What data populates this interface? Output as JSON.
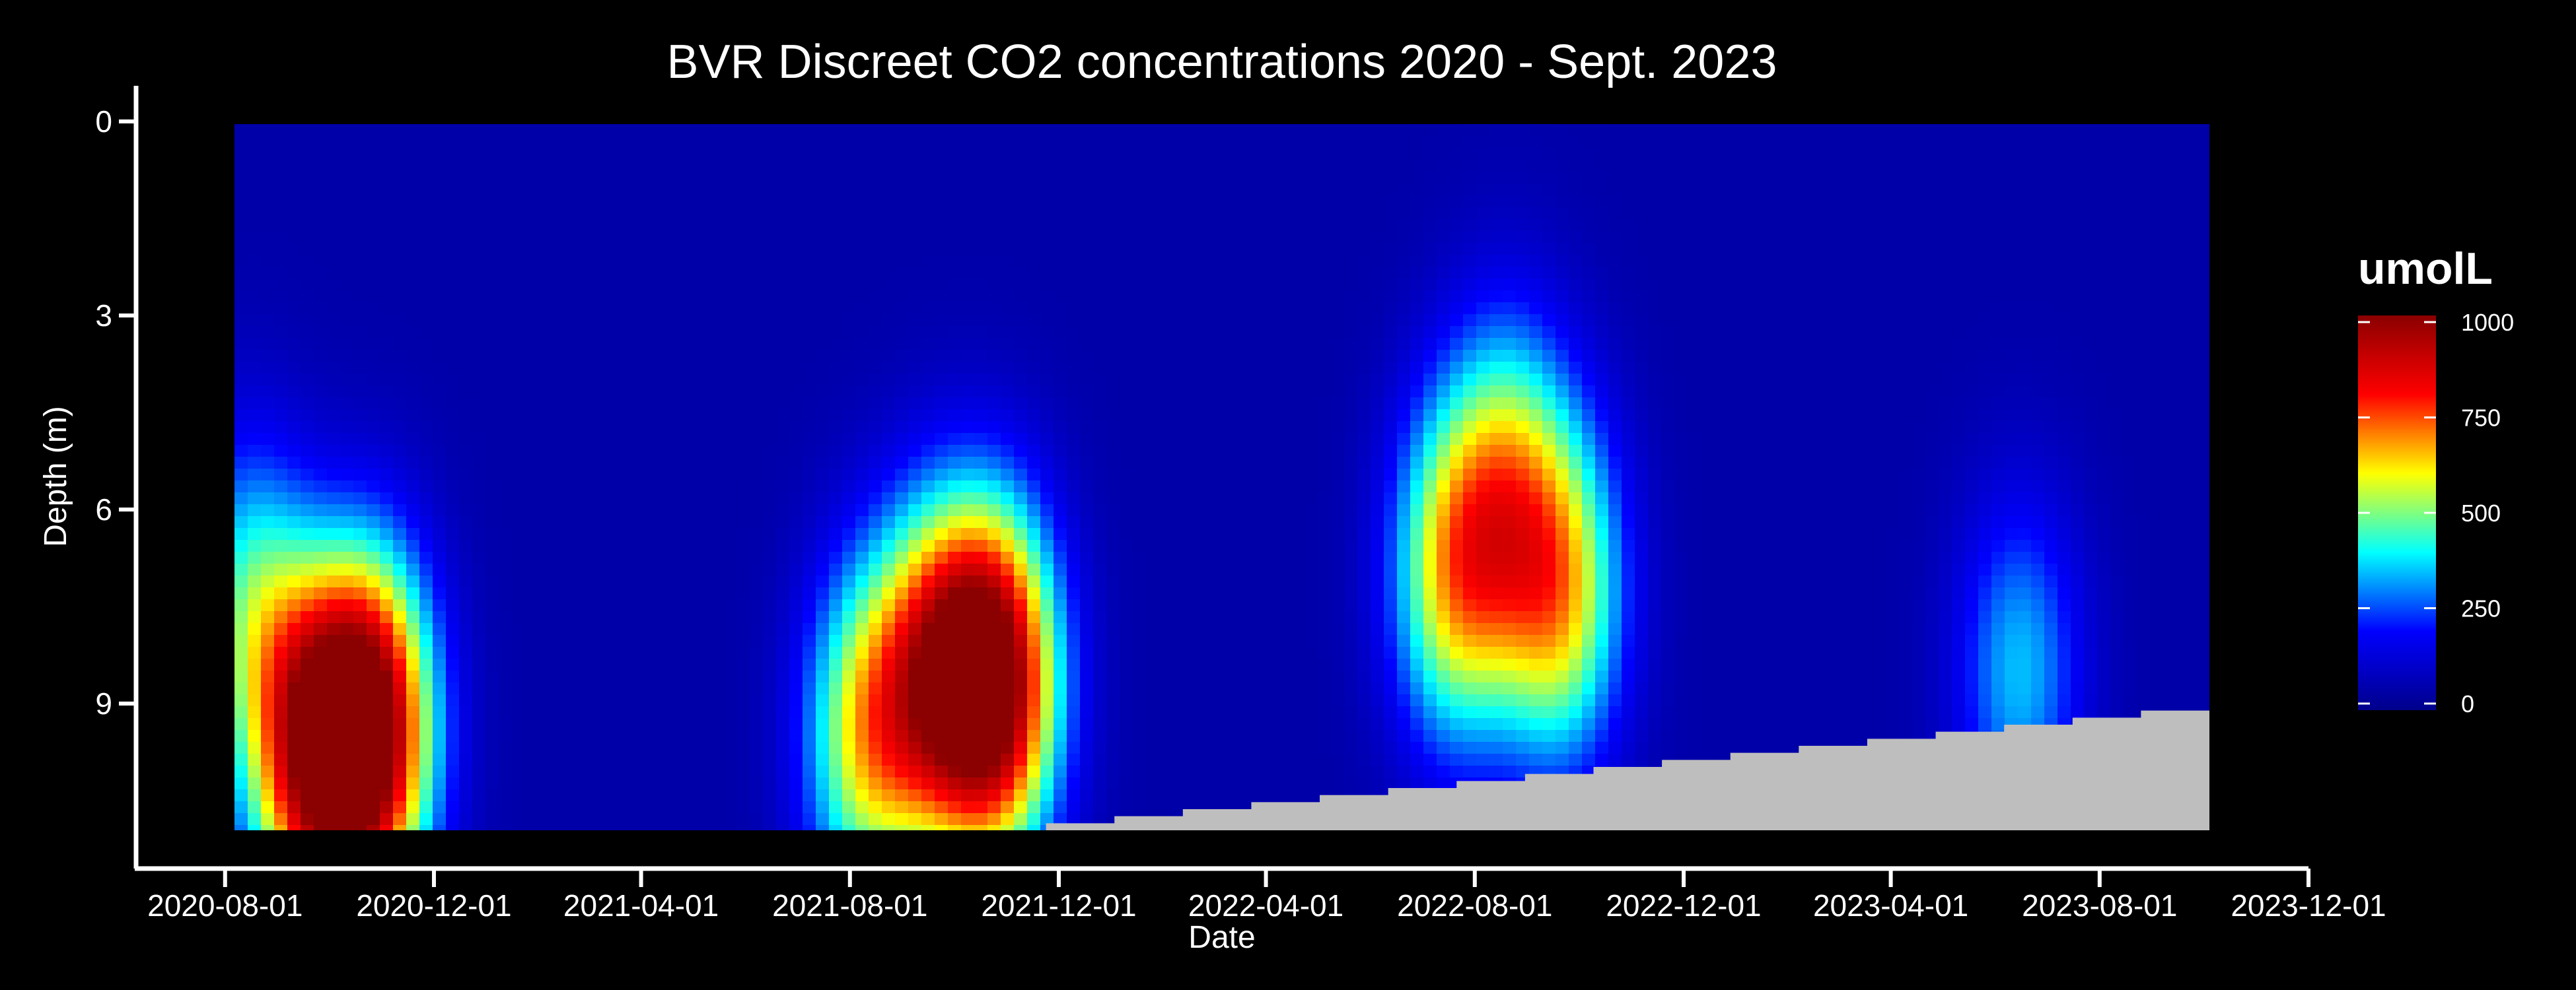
{
  "chart_data": {
    "type": "heatmap",
    "title": "BVR Discreet CO2 concentrations 2020 - Sept. 2023",
    "xlabel": "Date",
    "ylabel": "Depth (m)",
    "x_ticks": [
      "2020-08-01",
      "2020-12-01",
      "2021-04-01",
      "2021-08-01",
      "2021-12-01",
      "2022-04-01",
      "2022-08-01",
      "2022-12-01",
      "2023-04-01",
      "2023-08-01",
      "2023-12-01"
    ],
    "y_ticks": [
      0,
      3,
      6,
      9
    ],
    "xlim": [
      "2020-06-10",
      "2023-12-01"
    ],
    "ylim": [
      11,
      0
    ],
    "data_xrange": [
      "2020-06-25",
      "2023-09-25"
    ],
    "data_yrange": [
      0,
      11
    ],
    "y_reversed": true,
    "colorbar": {
      "title": "umolL",
      "ticks": [
        0,
        250,
        500,
        750,
        1000
      ],
      "range": [
        0,
        1000
      ],
      "colors": [
        "#00008b",
        "#0000ff",
        "#00ffff",
        "#ffff00",
        "#ff0000",
        "#8b0000"
      ]
    },
    "background_value": 50,
    "no_data_color": "#bebebe",
    "hotspots": [
      {
        "date": "2020-09-20",
        "depth": 9.8,
        "value": 780
      },
      {
        "date": "2020-10-25",
        "depth": 9.4,
        "value": 1000
      },
      {
        "date": "2020-08-15",
        "depth": 7.5,
        "value": 400
      },
      {
        "date": "2021-08-10",
        "depth": 9.5,
        "value": 560
      },
      {
        "date": "2021-09-20",
        "depth": 8.5,
        "value": 650
      },
      {
        "date": "2021-10-25",
        "depth": 8.7,
        "value": 1000
      },
      {
        "date": "2022-07-20",
        "depth": 7.0,
        "value": 600
      },
      {
        "date": "2022-09-20",
        "depth": 7.3,
        "value": 600
      },
      {
        "date": "2022-08-20",
        "depth": 5.5,
        "value": 420
      },
      {
        "date": "2023-06-15",
        "depth": 8.5,
        "value": 350
      }
    ]
  }
}
